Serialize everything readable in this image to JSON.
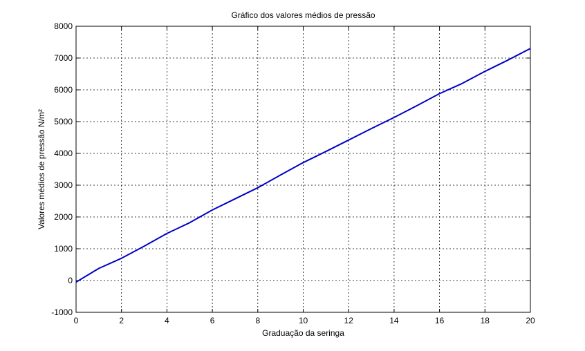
{
  "chart_data": {
    "type": "line",
    "title": "Gráfico dos valores médios de pressão",
    "xlabel": "Graduação da seringa",
    "ylabel": "Valores médios de pressão N/m²",
    "xlim": [
      0,
      20
    ],
    "ylim": [
      -1000,
      8000
    ],
    "xticks": [
      0,
      2,
      4,
      6,
      8,
      10,
      12,
      14,
      16,
      18,
      20
    ],
    "yticks": [
      -1000,
      0,
      1000,
      2000,
      3000,
      4000,
      5000,
      6000,
      7000,
      8000
    ],
    "grid": true,
    "series": [
      {
        "color": "#0000c8",
        "x": [
          0,
          1,
          2,
          3,
          4,
          5,
          6,
          7,
          8,
          9,
          10,
          11,
          12,
          13,
          14,
          15,
          16,
          17,
          18,
          19,
          20
        ],
        "y": [
          -50,
          380,
          700,
          1080,
          1480,
          1820,
          2220,
          2570,
          2920,
          3320,
          3710,
          4060,
          4420,
          4780,
          5130,
          5500,
          5880,
          6200,
          6580,
          6930,
          7300
        ]
      }
    ]
  }
}
